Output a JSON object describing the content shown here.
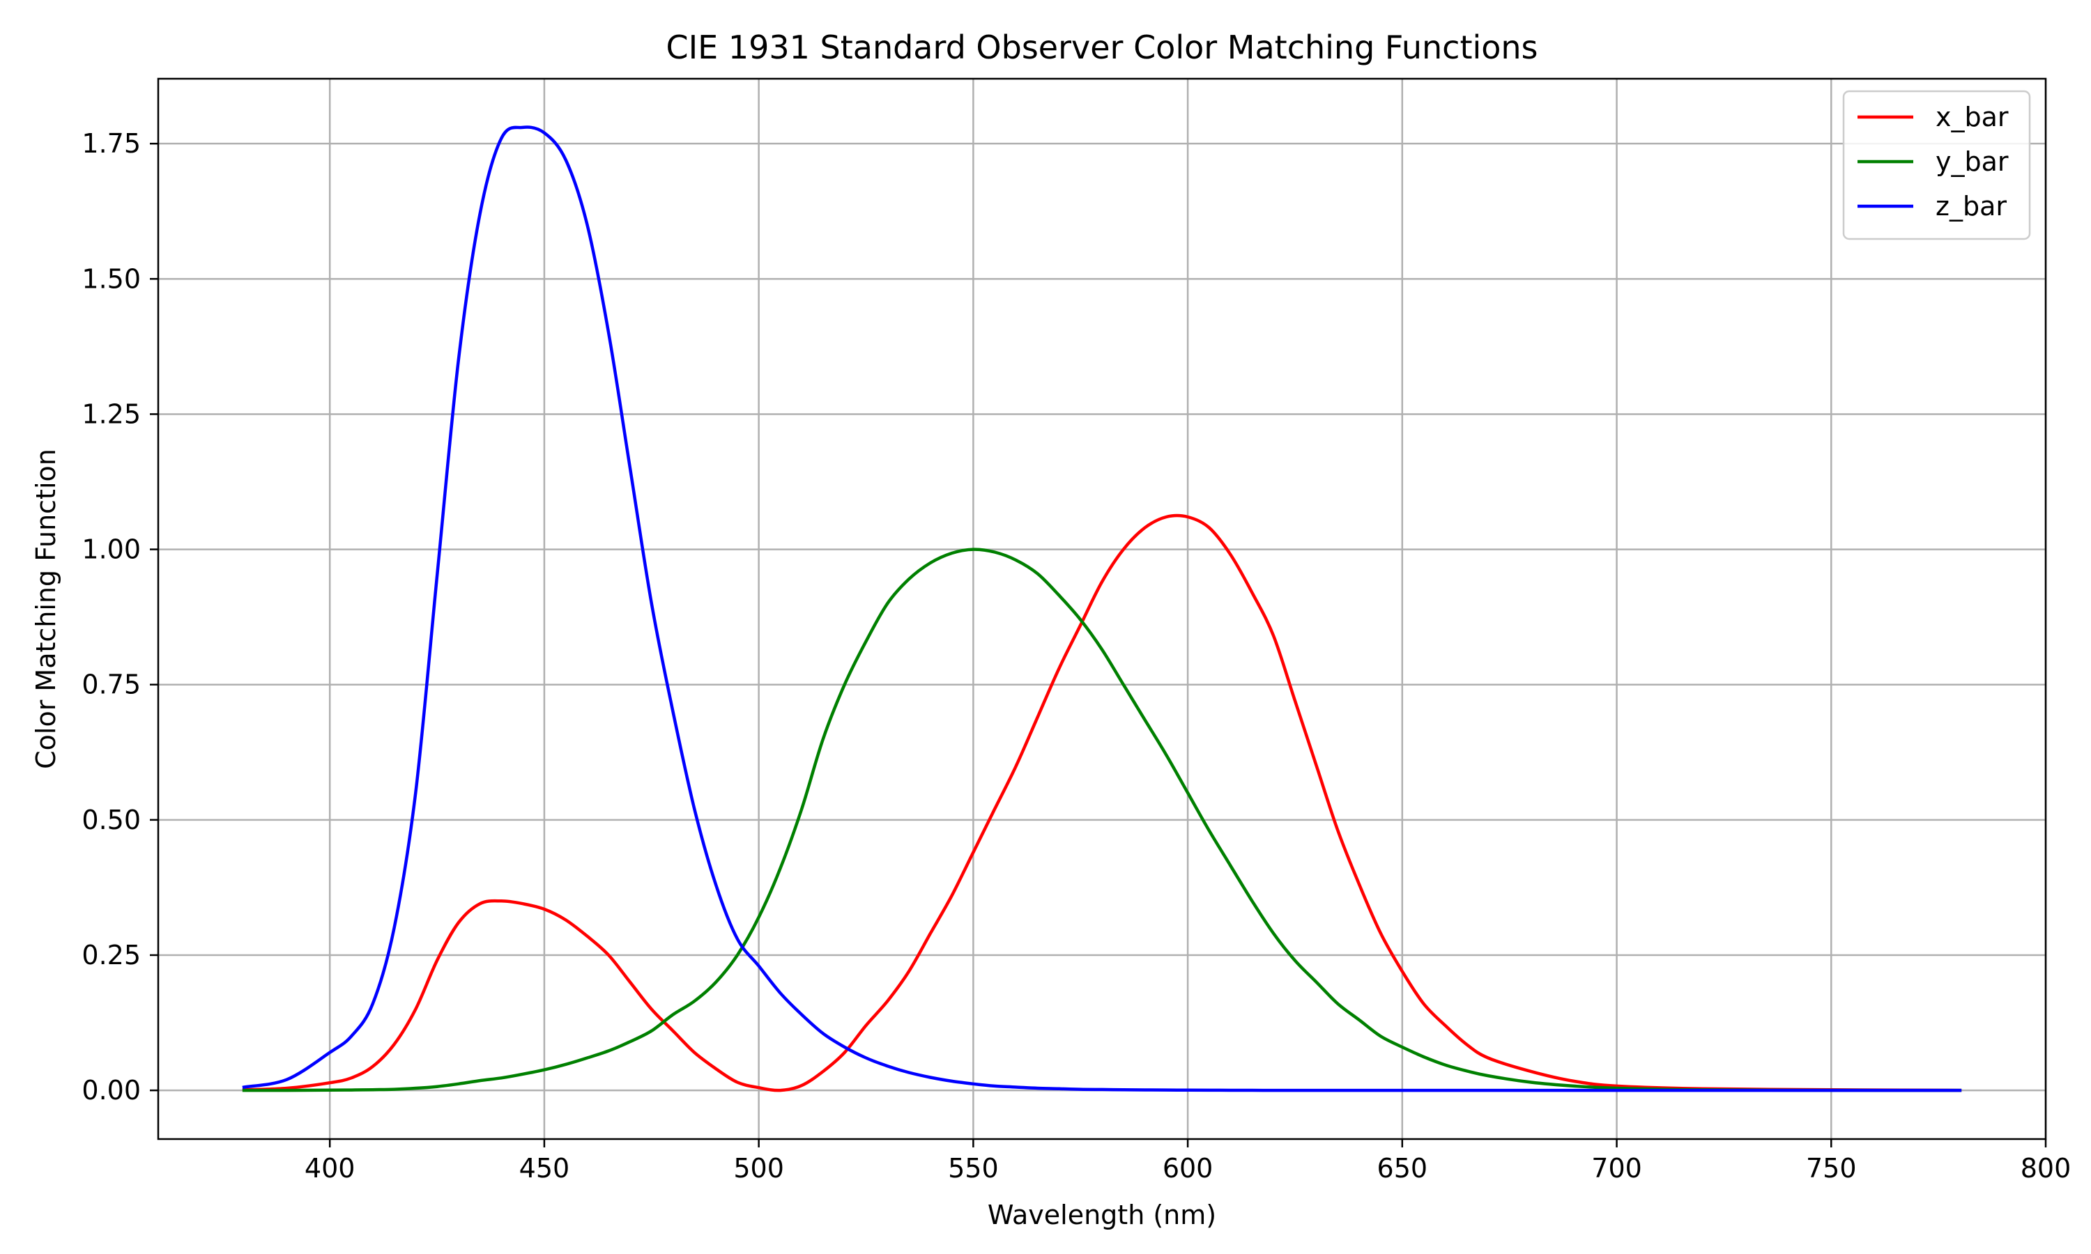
{
  "chart_data": {
    "type": "line",
    "title": "CIE 1931 Standard Observer Color Matching Functions",
    "xlabel": "Wavelength (nm)",
    "ylabel": "Color Matching Function",
    "xlim": [
      360,
      800
    ],
    "ylim": [
      -0.09,
      1.87
    ],
    "xticks": [
      400,
      450,
      500,
      550,
      600,
      650,
      700,
      750,
      800
    ],
    "xtick_labels": [
      "400",
      "450",
      "500",
      "550",
      "600",
      "650",
      "700",
      "750",
      "800"
    ],
    "yticks": [
      0,
      0.25,
      0.5,
      0.75,
      1.0,
      1.25,
      1.5,
      1.75
    ],
    "ytick_labels": [
      "0.00",
      "0.25",
      "0.50",
      "0.75",
      "1.00",
      "1.25",
      "1.50",
      "1.75"
    ],
    "grid": true,
    "legend_position": "top-right",
    "x": [
      380,
      390,
      400,
      405,
      410,
      415,
      420,
      425,
      430,
      435,
      440,
      445,
      450,
      455,
      460,
      465,
      470,
      475,
      480,
      485,
      490,
      495,
      500,
      505,
      510,
      515,
      520,
      525,
      530,
      535,
      540,
      545,
      550,
      555,
      560,
      565,
      570,
      575,
      580,
      585,
      590,
      595,
      600,
      605,
      610,
      615,
      620,
      625,
      630,
      635,
      640,
      645,
      650,
      655,
      660,
      665,
      670,
      680,
      690,
      700,
      720,
      750,
      780
    ],
    "series": [
      {
        "name": "x_bar",
        "color": "#ff0000",
        "values": [
          0.001,
          0.004,
          0.014,
          0.023,
          0.044,
          0.085,
          0.15,
          0.24,
          0.31,
          0.345,
          0.35,
          0.345,
          0.335,
          0.315,
          0.285,
          0.25,
          0.2,
          0.15,
          0.11,
          0.07,
          0.04,
          0.015,
          0.005,
          0.0,
          0.009,
          0.035,
          0.07,
          0.12,
          0.165,
          0.22,
          0.29,
          0.36,
          0.44,
          0.52,
          0.6,
          0.69,
          0.78,
          0.86,
          0.94,
          1.0,
          1.04,
          1.06,
          1.06,
          1.04,
          0.99,
          0.92,
          0.84,
          0.72,
          0.6,
          0.48,
          0.38,
          0.29,
          0.22,
          0.16,
          0.12,
          0.085,
          0.06,
          0.035,
          0.017,
          0.008,
          0.003,
          0.001,
          0.0
        ]
      },
      {
        "name": "y_bar",
        "color": "#008000",
        "values": [
          0.0,
          0.0,
          0.0004,
          0.0006,
          0.0012,
          0.002,
          0.004,
          0.007,
          0.012,
          0.018,
          0.023,
          0.03,
          0.038,
          0.048,
          0.06,
          0.073,
          0.09,
          0.11,
          0.14,
          0.165,
          0.2,
          0.25,
          0.32,
          0.41,
          0.52,
          0.65,
          0.75,
          0.83,
          0.9,
          0.945,
          0.975,
          0.993,
          1.0,
          0.995,
          0.98,
          0.955,
          0.915,
          0.87,
          0.815,
          0.75,
          0.685,
          0.62,
          0.55,
          0.48,
          0.415,
          0.35,
          0.29,
          0.24,
          0.2,
          0.16,
          0.13,
          0.1,
          0.08,
          0.062,
          0.047,
          0.036,
          0.027,
          0.015,
          0.008,
          0.004,
          0.001,
          0.0002,
          0.0
        ]
      },
      {
        "name": "z_bar",
        "color": "#0000ff",
        "values": [
          0.006,
          0.02,
          0.07,
          0.1,
          0.16,
          0.3,
          0.55,
          0.95,
          1.35,
          1.62,
          1.76,
          1.78,
          1.77,
          1.72,
          1.6,
          1.4,
          1.15,
          0.9,
          0.7,
          0.52,
          0.38,
          0.28,
          0.23,
          0.18,
          0.14,
          0.105,
          0.08,
          0.06,
          0.045,
          0.033,
          0.024,
          0.017,
          0.012,
          0.008,
          0.006,
          0.004,
          0.003,
          0.002,
          0.0015,
          0.001,
          0.0008,
          0.0006,
          0.0005,
          0.0003,
          0.0002,
          0.0001,
          0.0,
          0.0,
          0.0,
          0.0,
          0.0,
          0.0,
          0.0,
          0.0,
          0.0,
          0.0,
          0.0,
          0.0,
          0.0,
          0.0,
          0.0,
          0.0,
          0.0
        ]
      }
    ]
  }
}
